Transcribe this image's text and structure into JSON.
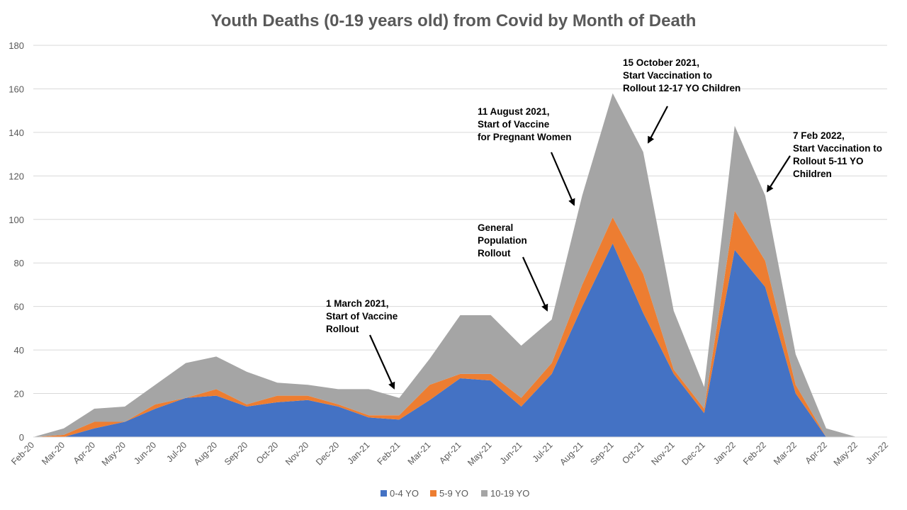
{
  "chart_data": {
    "type": "area",
    "stacked": true,
    "title": "Youth Deaths (0-19 years old) from Covid by Month of Death",
    "xlabel": "",
    "ylabel": "",
    "ylim": [
      0,
      180
    ],
    "yticks": [
      0,
      20,
      40,
      60,
      80,
      100,
      120,
      140,
      160,
      180
    ],
    "grid": true,
    "legend_position": "bottom",
    "categories": [
      "Feb-20",
      "Mar-20",
      "Apr-20",
      "May-20",
      "Jun-20",
      "Jul-20",
      "Aug-20",
      "Sep-20",
      "Oct-20",
      "Nov-20",
      "Dec-20",
      "Jan-21",
      "Feb-21",
      "Mar-21",
      "Apr-21",
      "May-21",
      "Jun-21",
      "Jul-21",
      "Aug-21",
      "Sep-21",
      "Oct-21",
      "Nov-21",
      "Dec-21",
      "Jan-22",
      "Feb-22",
      "Mar-22",
      "Apr-22",
      "May-22",
      "Jun-22"
    ],
    "series": [
      {
        "name": "0-4 YO",
        "color": "#4472C4",
        "values": [
          0,
          0,
          4,
          7,
          13,
          18,
          19,
          14,
          16,
          17,
          14,
          9,
          8,
          17,
          27,
          26,
          14,
          29,
          60,
          89,
          57,
          29,
          11,
          86,
          69,
          20,
          0,
          0,
          0
        ]
      },
      {
        "name": "5-9 YO",
        "color": "#ED7D31",
        "values": [
          0,
          1,
          3,
          0,
          2,
          0,
          3,
          1,
          3,
          2,
          1,
          1,
          2,
          7,
          2,
          3,
          4,
          5,
          10,
          12,
          18,
          2,
          2,
          18,
          12,
          4,
          0,
          0,
          0
        ]
      },
      {
        "name": "10-19 YO",
        "color": "#A5A5A5",
        "values": [
          0,
          3,
          6,
          7,
          9,
          16,
          15,
          15,
          6,
          5,
          7,
          12,
          8,
          12,
          27,
          27,
          24,
          20,
          41,
          57,
          56,
          27,
          10,
          39,
          30,
          14,
          4,
          0,
          0
        ]
      }
    ],
    "annotations": [
      {
        "lines": [
          "1 March 2021,",
          "Start of Vaccine",
          "Rollout"
        ]
      },
      {
        "lines": [
          "General",
          "Population",
          "Rollout"
        ]
      },
      {
        "lines": [
          "11 August 2021,",
          "Start of Vaccine",
          "for Pregnant Women"
        ]
      },
      {
        "lines": [
          "15 October 2021,",
          "Start Vaccination to",
          "Rollout 12-17 YO Children"
        ]
      },
      {
        "lines": [
          "7 Feb 2022,",
          "Start Vaccination to",
          "Rollout 5-11 YO",
          "Children"
        ]
      }
    ]
  }
}
